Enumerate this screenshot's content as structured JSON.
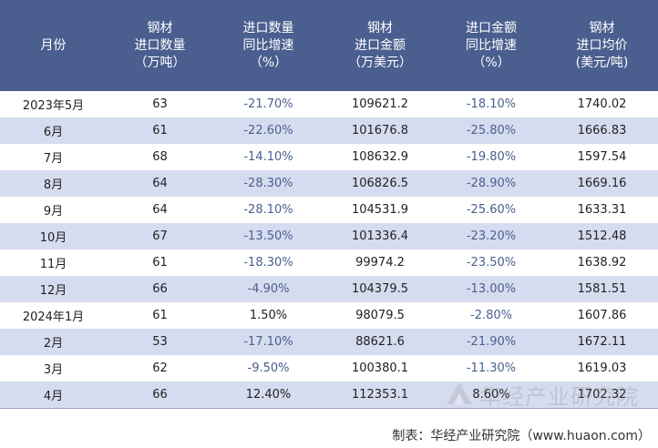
{
  "table": {
    "headers": [
      {
        "lines": [
          "月份"
        ]
      },
      {
        "lines": [
          "钢材",
          "进口数量",
          "（万吨）"
        ]
      },
      {
        "lines": [
          "进口数量",
          "同比增速",
          "（%）"
        ]
      },
      {
        "lines": [
          "钢材",
          "进口金额",
          "（万美元）"
        ]
      },
      {
        "lines": [
          "进口金额",
          "同比增速",
          "（%）"
        ]
      },
      {
        "lines": [
          "钢材",
          "进口均价",
          "(美元/吨)"
        ]
      }
    ],
    "rows": [
      [
        "2023年5月",
        "63",
        "-21.70%",
        "109621.2",
        "-18.10%",
        "1740.02"
      ],
      [
        "6月",
        "61",
        "-22.60%",
        "101676.8",
        "-25.80%",
        "1666.83"
      ],
      [
        "7月",
        "68",
        "-14.10%",
        "108632.9",
        "-19.80%",
        "1597.54"
      ],
      [
        "8月",
        "64",
        "-28.30%",
        "106826.5",
        "-28.90%",
        "1669.16"
      ],
      [
        "9月",
        "64",
        "-28.10%",
        "104531.9",
        "-25.60%",
        "1633.31"
      ],
      [
        "10月",
        "67",
        "-13.50%",
        "101336.4",
        "-23.20%",
        "1512.48"
      ],
      [
        "11月",
        "61",
        "-18.30%",
        "99974.2",
        "-23.50%",
        "1638.92"
      ],
      [
        "12月",
        "66",
        "-4.90%",
        "104379.5",
        "-13.00%",
        "1581.51"
      ],
      [
        "2024年1月",
        "61",
        "1.50%",
        "98079.5",
        "-2.80%",
        "1607.86"
      ],
      [
        "2月",
        "53",
        "-17.10%",
        "88621.6",
        "-21.90%",
        "1672.11"
      ],
      [
        "3月",
        "62",
        "-9.50%",
        "100380.1",
        "-11.30%",
        "1619.03"
      ],
      [
        "4月",
        "66",
        "12.40%",
        "112353.1",
        "8.60%",
        "1702.32"
      ]
    ]
  },
  "footer": {
    "source": "制表：华经产业研究院（www.huaon.com）"
  },
  "watermark": {
    "text": "华经产业研究院"
  },
  "colors": {
    "header_bg": "#4a5f8f",
    "stripe": "#d6dcef",
    "negative": "#4a5f8f"
  }
}
